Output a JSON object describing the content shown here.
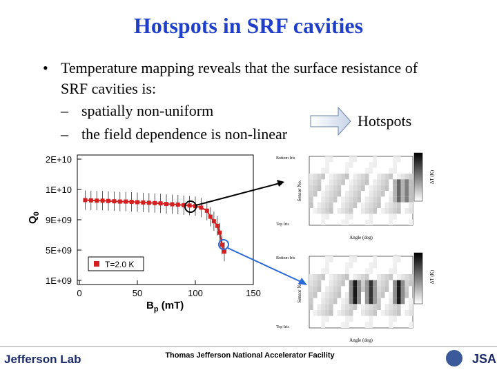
{
  "header": {
    "title": "Hotspots in SRF cavities"
  },
  "body": {
    "bullet": "Temperature mapping reveals that the surface resistance of",
    "bullet_cont": "SRF cavities is:",
    "sub1": "spatially non-uniform",
    "sub2": "the field dependence is non-linear",
    "arrow_label": "Hotspots"
  },
  "chart_data": {
    "type": "line",
    "ylabel_main": "Q",
    "ylabel_sub": "0",
    "xlabel_main": "B",
    "xlabel_sub": "p",
    "xlabel_rest": " (mT)",
    "legend": "T=2.0 K",
    "series": [
      {
        "name": "T=2.0 K",
        "color": "#d42020",
        "x": [
          5,
          10,
          15,
          20,
          25,
          30,
          35,
          40,
          45,
          50,
          55,
          60,
          65,
          70,
          75,
          80,
          85,
          90,
          95,
          100,
          105,
          110,
          113,
          116,
          119,
          121,
          123,
          125
        ],
        "values": [
          9650000000,
          9640000000,
          9630000000,
          9630000000,
          9620000000,
          9610000000,
          9600000000,
          9600000000,
          9590000000,
          9580000000,
          9570000000,
          9560000000,
          9550000000,
          9540000000,
          9520000000,
          9510000000,
          9500000000,
          9480000000,
          9470000000,
          9450000000,
          9400000000,
          9300000000,
          9100000000,
          8800000000,
          8200000000,
          7300000000,
          5700000000,
          4800000000
        ]
      }
    ],
    "xlim": [
      0,
      150
    ],
    "xticks": [
      0,
      50,
      100,
      150
    ],
    "yticks": [
      {
        "value": 20000000000,
        "label": "2E+10"
      },
      {
        "value": 10000000000,
        "label": "1E+10"
      },
      {
        "value": 9000000000,
        "label": "9E+09"
      },
      {
        "value": 5000000000,
        "label": "5E+09"
      },
      {
        "value": 1000000000,
        "label": "1E+09"
      }
    ]
  },
  "maps": {
    "xlabel": "Angle (deg)",
    "ylabel": "Sensor No.",
    "cbar_label": "ΔT (K)",
    "top_label": "Bottom Iris",
    "bottom_label": "Top Iris"
  },
  "footer": {
    "lab": "Jefferson Lab",
    "facility": "Thomas Jefferson National Accelerator Facility",
    "jsa": "JSA"
  }
}
